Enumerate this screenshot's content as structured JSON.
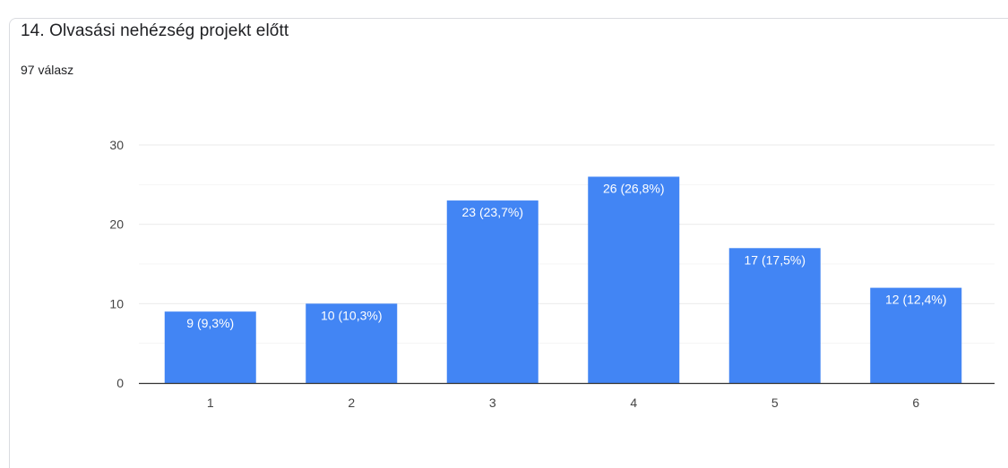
{
  "header": {
    "title": "14. Olvasási nehézség projekt előtt",
    "responses": "97 válasz"
  },
  "colors": {
    "bar": "#4285f4",
    "grid": "#ebebeb",
    "axis": "#333333",
    "text": "#444444",
    "label": "#ffffff"
  },
  "chart_data": {
    "type": "bar",
    "categories": [
      "1",
      "2",
      "3",
      "4",
      "5",
      "6"
    ],
    "values": [
      9,
      10,
      23,
      26,
      17,
      12
    ],
    "data_labels": [
      "9 (9,3%)",
      "10 (10,3%)",
      "23 (23,7%)",
      "26 (26,8%)",
      "17 (17,5%)",
      "12 (12,4%)"
    ],
    "title": "14. Olvasási nehézség projekt előtt",
    "subtitle": "97 válasz",
    "xlabel": "",
    "ylabel": "",
    "ylim": [
      0,
      30
    ],
    "y_ticks": [
      0,
      10,
      20,
      30
    ],
    "grid": true,
    "legend": "none"
  }
}
